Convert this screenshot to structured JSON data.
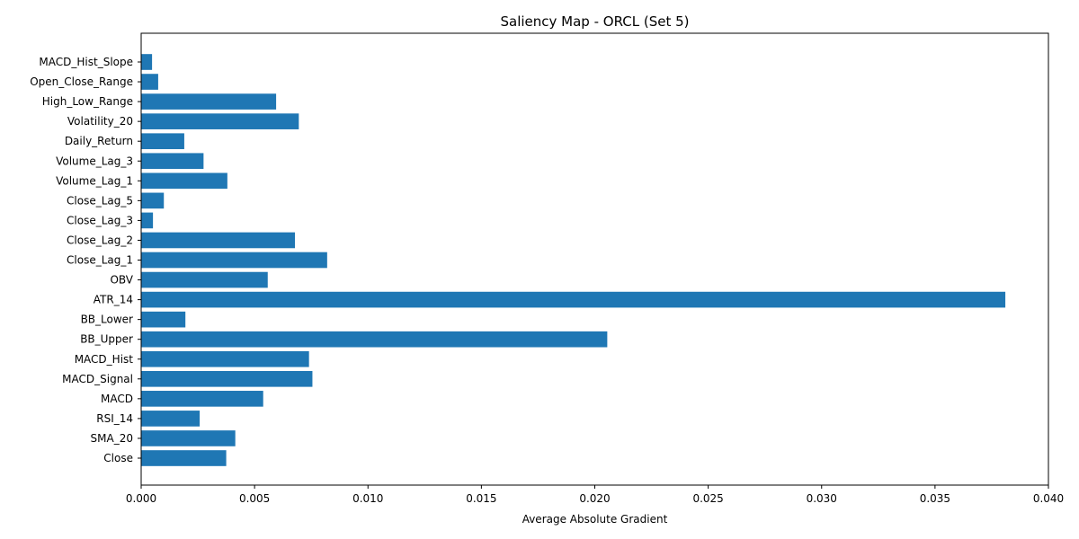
{
  "chart_data": {
    "type": "bar",
    "orientation": "horizontal",
    "title": "Saliency Map - ORCL (Set 5)",
    "xlabel": "Average Absolute Gradient",
    "ylabel": "",
    "xlim": [
      0,
      0.04
    ],
    "xticks": [
      "0.000",
      "0.005",
      "0.010",
      "0.015",
      "0.020",
      "0.025",
      "0.030",
      "0.035",
      "0.040"
    ],
    "grid": false,
    "bar_color": "#1f77b4",
    "categories": [
      "Close",
      "SMA_20",
      "RSI_14",
      "MACD",
      "MACD_Signal",
      "MACD_Hist",
      "BB_Upper",
      "BB_Lower",
      "ATR_14",
      "OBV",
      "Close_Lag_1",
      "Close_Lag_2",
      "Close_Lag_3",
      "Close_Lag_5",
      "Volume_Lag_1",
      "Volume_Lag_3",
      "Daily_Return",
      "Volatility_20",
      "High_Low_Range",
      "Open_Close_Range",
      "MACD_Hist_Slope"
    ],
    "values": [
      0.00375,
      0.00415,
      0.00258,
      0.00538,
      0.00755,
      0.0074,
      0.02055,
      0.00195,
      0.0381,
      0.00558,
      0.0082,
      0.00678,
      0.00052,
      0.001,
      0.0038,
      0.00275,
      0.0019,
      0.00695,
      0.00595,
      0.00075,
      0.00048
    ]
  }
}
